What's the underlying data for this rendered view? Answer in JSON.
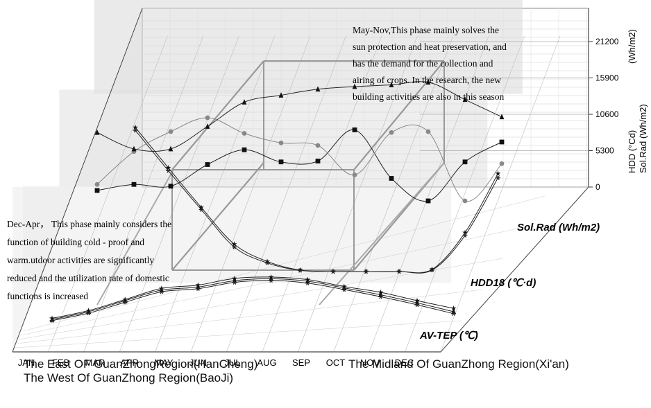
{
  "chart_data": {
    "type": "line",
    "projection": "3d",
    "categories": [
      "JAN",
      "FEB",
      "MAR",
      "APR",
      "MAY",
      "JUN",
      "JUL",
      "AUG",
      "SEP",
      "OCT",
      "NOV",
      "DEC"
    ],
    "right_axis": {
      "ticks": [
        0,
        5300,
        10600,
        15900,
        21200
      ],
      "label_hdd": "HDD (°Cd)",
      "label_hdd_unit": "(Wh/m2)",
      "label_solrad": "Sol.Rad (Wh/m2)"
    },
    "depth_labels": {
      "solrad": "Sol.Rad (Wh/m2)",
      "hdd": "HDD18 (℃·d)",
      "temp": "AV-TEP (℃)"
    },
    "series": [
      {
        "group": "temp",
        "variants": [
          {
            "values": [
              2.6,
              5.4,
              9.4,
              13.4,
              14.6,
              17.0,
              17.5,
              16.6,
              14.1,
              12.0,
              9.0,
              6.2
            ],
            "marker": "star"
          },
          {
            "values": [
              2.2,
              5.0,
              9.0,
              12.8,
              13.9,
              16.2,
              16.9,
              16.0,
              13.6,
              11.1,
              8.2,
              5.0
            ],
            "marker": "triangle"
          },
          {
            "values": [
              1.8,
              4.5,
              8.4,
              12.2,
              13.3,
              15.6,
              16.3,
              15.3,
              13.0,
              10.4,
              7.5,
              4.3
            ],
            "marker": "asterisk"
          }
        ]
      },
      {
        "group": "hdd",
        "variants": [
          {
            "values": [
              20000,
              14400,
              8900,
              3800,
              1400,
              200,
              0,
              0,
              0,
              300,
              5400,
              13600
            ],
            "marker": "star"
          },
          {
            "values": [
              19600,
              14000,
              8600,
              3400,
              1200,
              150,
              0,
              0,
              0,
              200,
              5000,
              13000
            ],
            "marker": "asterisk"
          }
        ]
      },
      {
        "group": "solrad",
        "variants": [
          {
            "values": [
              5600,
              6300,
              6100,
              8600,
              10300,
              8900,
              9000,
              12600,
              7000,
              4400,
              8900,
              11200
            ],
            "marker": "square"
          },
          {
            "values": [
              6300,
              10100,
              12400,
              14000,
              12200,
              11100,
              10800,
              7400,
              12300,
              12400,
              4400,
              8700
            ],
            "marker": "circle"
          },
          {
            "values": [
              12300,
              10400,
              10400,
              13000,
              15800,
              16600,
              17300,
              17600,
              17800,
              18100,
              16100,
              14100
            ],
            "marker": "triangle"
          }
        ]
      }
    ],
    "annotations": {
      "summer": [
        "May-Nov,This phase mainly solves the",
        "sun protection and heat preservation, and",
        "has the demand for the collection and",
        "airing of crops. In the research, the new",
        "building activities are also in this season"
      ],
      "winter": [
        "Dec-Apr，  This phase mainly considers the",
        "function of building cold - proof and",
        "warm.utdoor activities are significantly",
        " reduced and the utilization rate of domestic",
        "functions is increased"
      ]
    },
    "legend": {
      "east": "The East OF GuanZhongRegion(HanCheng)",
      "midland": "The Midland Of GuanZhong Region(Xi'an)",
      "west": "The West Of GuanZhong Region(BaoJi)"
    }
  }
}
